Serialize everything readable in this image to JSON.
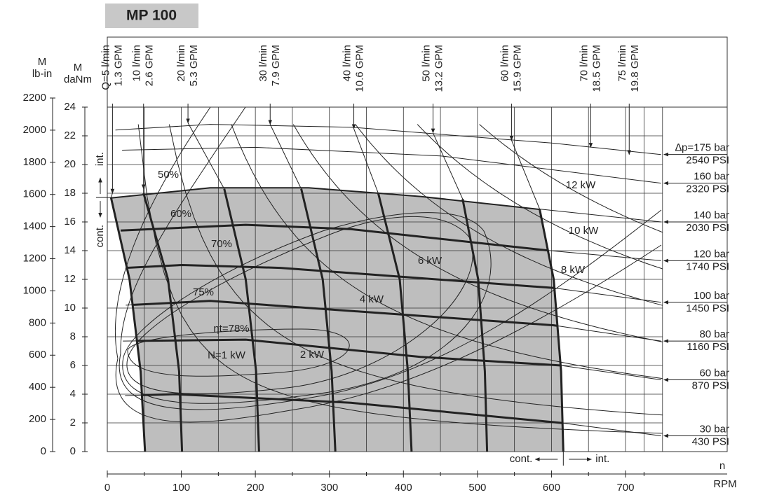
{
  "chart_data": {
    "type": "performance",
    "title": "MP 100",
    "y_label": [
      "M",
      "daNm"
    ],
    "y2_label": [
      "M",
      "lb-in"
    ],
    "ylim": [
      0,
      24
    ],
    "yticks": [
      0,
      2,
      4,
      6,
      8,
      10,
      12,
      14,
      16,
      18,
      20,
      22,
      24
    ],
    "y2lim": [
      0,
      2200
    ],
    "y2ticks": [
      0,
      200,
      400,
      600,
      800,
      1000,
      1200,
      1400,
      1600,
      1800,
      2000,
      2200
    ],
    "xlim": [
      0,
      750
    ],
    "xticks": [
      0,
      100,
      200,
      300,
      400,
      500,
      600,
      700
    ],
    "x_label": [
      "n",
      "RPM"
    ],
    "grid": true,
    "region_color": "#bebebe",
    "flows": [
      {
        "name": "Q=5 l/min",
        "gpm": "1.3 GPM",
        "arrow": [
          7,
          18
        ],
        "x": [
          5,
          30,
          45,
          51
        ],
        "y": [
          17.7,
          12,
          5.6,
          0
        ]
      },
      {
        "name": "10 l/min",
        "gpm": "2.6 GPM",
        "arrow": [
          49,
          18.3
        ],
        "x": [
          49,
          82,
          97,
          101
        ],
        "y": [
          18,
          12,
          5.6,
          0
        ]
      },
      {
        "name": "20 l/min",
        "gpm": "5.3 GPM",
        "arrow": [
          109,
          22.9
        ],
        "x": [
          158,
          187,
          201,
          205
        ],
        "y": [
          18.3,
          12,
          5.6,
          0
        ]
      },
      {
        "name": "30 l/min",
        "gpm": "7.9 GPM",
        "arrow": [
          220,
          22.8
        ],
        "x": [
          262,
          291,
          303,
          308
        ],
        "y": [
          18.3,
          12,
          5.6,
          0
        ]
      },
      {
        "name": "40 l/min",
        "gpm": "10.6 GPM",
        "arrow": [
          333,
          22.5
        ],
        "x": [
          366,
          395,
          406,
          411
        ],
        "y": [
          18,
          12,
          5.6,
          0
        ]
      },
      {
        "name": "50 l/min",
        "gpm": "13.2 GPM",
        "arrow": [
          440,
          22.2
        ],
        "x": [
          480,
          501,
          510,
          513
        ],
        "y": [
          17.6,
          12,
          5.6,
          0
        ]
      },
      {
        "name": "60 l/min",
        "gpm": "15.9 GPM",
        "arrow": [
          546,
          21.7
        ],
        "x": [
          584,
          603,
          613,
          616
        ],
        "y": [
          16.9,
          12,
          5.6,
          0
        ]
      },
      {
        "name": "70 l/min",
        "gpm": "18.5 GPM",
        "arrow": [
          653,
          21.2
        ]
      },
      {
        "name": "75 l/min",
        "gpm": "19.8 GPM",
        "arrow": [
          705,
          20.7
        ]
      }
    ],
    "pressures": [
      {
        "name": "∆p=175 bar",
        "psi": "2540 PSI",
        "x": [
          11,
          139,
          329,
          600,
          748
        ],
        "y": [
          22.4,
          22.8,
          22.6,
          21.5,
          20.7
        ]
      },
      {
        "name": "160 bar",
        "psi": "2320 PSI",
        "x": [
          20,
          200,
          450,
          748
        ],
        "y": [
          21,
          21.2,
          20.6,
          18.7
        ]
      },
      {
        "name": "140 bar",
        "psi": "2030 PSI",
        "x": [
          5,
          139,
          272,
          423,
          584,
          748
        ],
        "y": [
          17.7,
          18.4,
          18.4,
          17.8,
          16.9,
          16
        ]
      },
      {
        "name": "120 bar",
        "psi": "1740 PSI",
        "x": [
          18,
          187,
          329,
          598,
          748
        ],
        "y": [
          15.4,
          15.8,
          15.5,
          14,
          13.3
        ]
      },
      {
        "name": "100 bar",
        "psi": "1450 PSI",
        "x": [
          25,
          101,
          234,
          603,
          748
        ],
        "y": [
          12.8,
          13,
          12.8,
          11.4,
          10.4
        ]
      },
      {
        "name": "80 bar",
        "psi": "1160 PSI",
        "x": [
          25,
          139,
          329,
          603,
          748
        ],
        "y": [
          10.2,
          10.5,
          9.8,
          8.8,
          7.7
        ]
      },
      {
        "name": "60 bar",
        "psi": "870 PSI",
        "x": [
          21,
          187,
          423,
          613,
          748
        ],
        "y": [
          7.7,
          7.8,
          6.6,
          6,
          5
        ]
      },
      {
        "name": "30 bar",
        "psi": "430 PSI",
        "x": [
          24,
          92,
          329,
          613,
          748
        ],
        "y": [
          3.9,
          4,
          3.4,
          2,
          1.1
        ]
      }
    ],
    "power": [
      {
        "value": 1,
        "label": "N=1 kW"
      },
      {
        "value": 2,
        "label": "2 kW"
      },
      {
        "value": 4,
        "label": "4 kW"
      },
      {
        "value": 6,
        "label": "6 kW"
      },
      {
        "value": 8,
        "label": "8 kW"
      },
      {
        "value": 10,
        "label": "10 kW"
      },
      {
        "value": 12,
        "label": "12 kW"
      }
    ],
    "efficiency": [
      "50%",
      "60%",
      "70%",
      "75%",
      "ηt=78%"
    ],
    "limits": {
      "cont": "cont.",
      "int": "int."
    }
  }
}
